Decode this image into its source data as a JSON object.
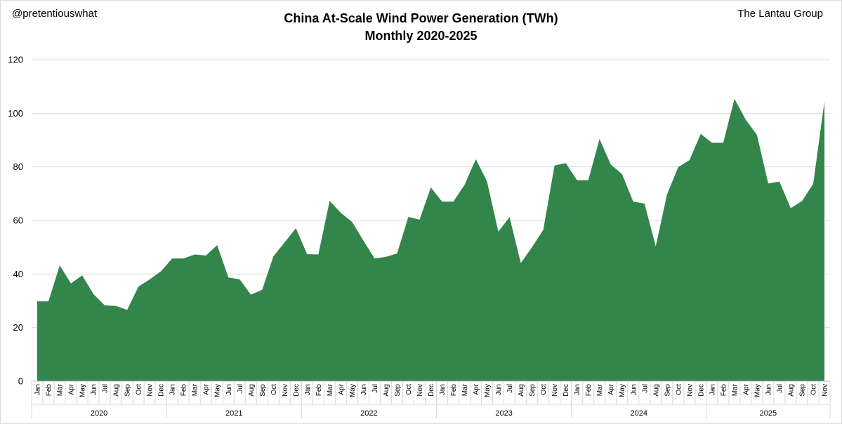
{
  "corner_left": "@pretentiouswhat",
  "corner_right": "The Lantau Group",
  "chart_data": {
    "type": "area",
    "title": "China At-Scale Wind Power Generation (TWh)",
    "subtitle": "Monthly 2020-2025",
    "xlabel": "",
    "ylabel": "",
    "ylim": [
      0,
      120
    ],
    "yticks": [
      0,
      20,
      40,
      60,
      80,
      100,
      120
    ],
    "grid": true,
    "color": "#32854b",
    "month_labels": [
      "Jan",
      "Feb",
      "Mar",
      "Apr",
      "May",
      "Jun",
      "Jul",
      "Aug",
      "Sep",
      "Oct",
      "Nov",
      "Dec"
    ],
    "years": [
      "2020",
      "2021",
      "2022",
      "2023",
      "2024",
      "2025"
    ],
    "series": [
      {
        "name": "Wind Power Generation (TWh)",
        "values": [
          29.8,
          29.8,
          43.2,
          36.5,
          39.5,
          32.5,
          28.3,
          28.1,
          26.6,
          35.3,
          38.0,
          41.0,
          45.8,
          45.8,
          47.3,
          46.9,
          50.8,
          38.7,
          38.0,
          32.3,
          34.1,
          46.6,
          51.8,
          57.1,
          47.4,
          47.3,
          67.3,
          62.8,
          59.4,
          52.5,
          45.8,
          46.4,
          47.7,
          61.3,
          60.3,
          72.3,
          67.0,
          67.0,
          73.3,
          82.9,
          74.5,
          55.8,
          61.2,
          44.1,
          50.0,
          56.5,
          80.5,
          81.4,
          75.0,
          75.0,
          90.4,
          80.9,
          77.3,
          67.0,
          66.3,
          50.3,
          69.7,
          79.9,
          82.5,
          92.3,
          89.0,
          89.0,
          105.4,
          97.6,
          91.9,
          73.8,
          74.5,
          64.6,
          67.2,
          73.6,
          104.4
        ]
      }
    ]
  }
}
